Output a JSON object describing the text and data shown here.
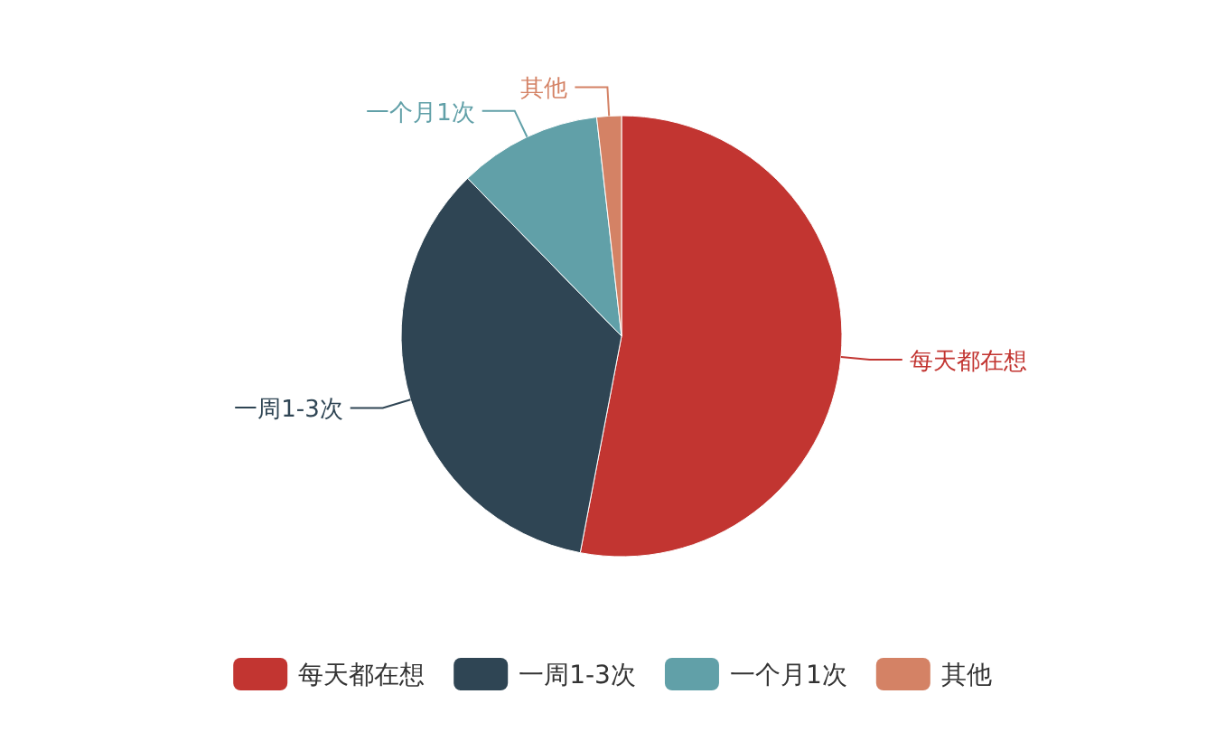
{
  "chart_data": {
    "type": "pie",
    "categories": [
      "每天都在想",
      "一周1-3次",
      "一个月1次",
      "其他"
    ],
    "values": [
      53,
      34.7,
      10.5,
      1.8
    ],
    "colors": [
      "#c23531",
      "#2f4554",
      "#61a0a8",
      "#d48265"
    ],
    "legend": "bottom"
  }
}
